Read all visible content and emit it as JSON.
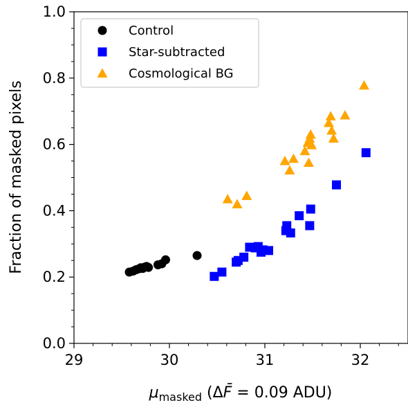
{
  "chart_data": {
    "type": "scatter",
    "xlabel": {
      "symbol": "μ",
      "subscript": "masked",
      "annotation_open": " (Δ",
      "annotation_var": "F̄",
      "annotation_close": " = 0.09 ADU)"
    },
    "ylabel": "Fraction of masked pixels",
    "xlim": [
      29,
      32.5
    ],
    "ylim": [
      0.0,
      1.0
    ],
    "xticks": [
      "29",
      "30",
      "31",
      "32"
    ],
    "yticks": [
      "0.0",
      "0.2",
      "0.4",
      "0.6",
      "0.8",
      "1.0"
    ],
    "legend_position": "top-left",
    "grid": false,
    "series": [
      {
        "name": "Control",
        "marker": "circle",
        "color": "#000000",
        "points": [
          [
            29.58,
            0.215
          ],
          [
            29.62,
            0.218
          ],
          [
            29.65,
            0.222
          ],
          [
            29.68,
            0.225
          ],
          [
            29.7,
            0.228
          ],
          [
            29.72,
            0.226
          ],
          [
            29.74,
            0.23
          ],
          [
            29.76,
            0.232
          ],
          [
            29.78,
            0.229
          ],
          [
            29.88,
            0.237
          ],
          [
            29.92,
            0.24
          ],
          [
            29.96,
            0.252
          ],
          [
            30.29,
            0.265
          ]
        ]
      },
      {
        "name": "Star-subtracted",
        "marker": "square",
        "color": "#0000ff",
        "points": [
          [
            30.47,
            0.202
          ],
          [
            30.55,
            0.215
          ],
          [
            30.7,
            0.245
          ],
          [
            30.72,
            0.25
          ],
          [
            30.78,
            0.26
          ],
          [
            30.84,
            0.29
          ],
          [
            30.9,
            0.288
          ],
          [
            30.93,
            0.292
          ],
          [
            30.96,
            0.275
          ],
          [
            30.98,
            0.282
          ],
          [
            31.04,
            0.28
          ],
          [
            31.22,
            0.34
          ],
          [
            31.23,
            0.355
          ],
          [
            31.27,
            0.333
          ],
          [
            31.36,
            0.385
          ],
          [
            31.47,
            0.355
          ],
          [
            31.48,
            0.405
          ],
          [
            31.75,
            0.478
          ],
          [
            32.06,
            0.575
          ]
        ]
      },
      {
        "name": "Cosmological BG",
        "marker": "triangle",
        "color": "#ffa500",
        "points": [
          [
            30.61,
            0.435
          ],
          [
            30.71,
            0.42
          ],
          [
            30.81,
            0.445
          ],
          [
            31.21,
            0.55
          ],
          [
            31.26,
            0.522
          ],
          [
            31.3,
            0.557
          ],
          [
            31.42,
            0.58
          ],
          [
            31.45,
            0.605
          ],
          [
            31.46,
            0.545
          ],
          [
            31.47,
            0.618
          ],
          [
            31.48,
            0.63
          ],
          [
            31.49,
            0.598
          ],
          [
            31.67,
            0.665
          ],
          [
            31.69,
            0.685
          ],
          [
            31.7,
            0.642
          ],
          [
            31.72,
            0.618
          ],
          [
            31.84,
            0.688
          ],
          [
            32.04,
            0.778
          ]
        ]
      }
    ]
  }
}
